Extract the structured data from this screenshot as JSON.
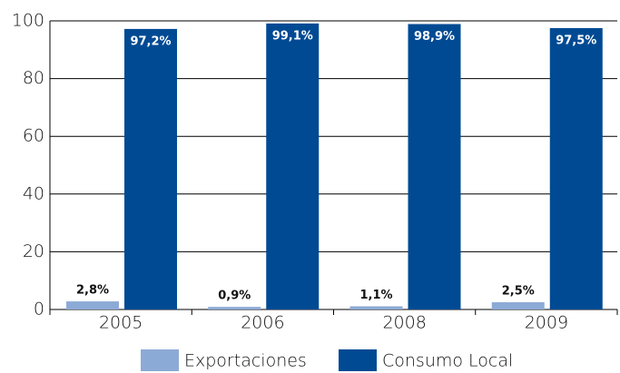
{
  "chart_data": {
    "type": "bar",
    "categories": [
      "2005",
      "2006",
      "2008",
      "2009"
    ],
    "series": [
      {
        "name": "Exportaciones",
        "color": "#8caad6",
        "values": [
          2.8,
          0.9,
          1.1,
          2.5
        ],
        "value_labels": [
          "2,8%",
          "0,9%",
          "1,1%",
          "2,5%"
        ]
      },
      {
        "name": "Consumo Local",
        "color": "#004a93",
        "values": [
          97.2,
          99.1,
          98.9,
          97.5
        ],
        "value_labels": [
          "97,2%",
          "99,1%",
          "98,9%",
          "97,5%"
        ]
      }
    ],
    "ylim": [
      0,
      100
    ],
    "yticks": [
      0,
      20,
      40,
      60,
      80,
      100
    ],
    "grid": true,
    "legend": "bottom"
  }
}
